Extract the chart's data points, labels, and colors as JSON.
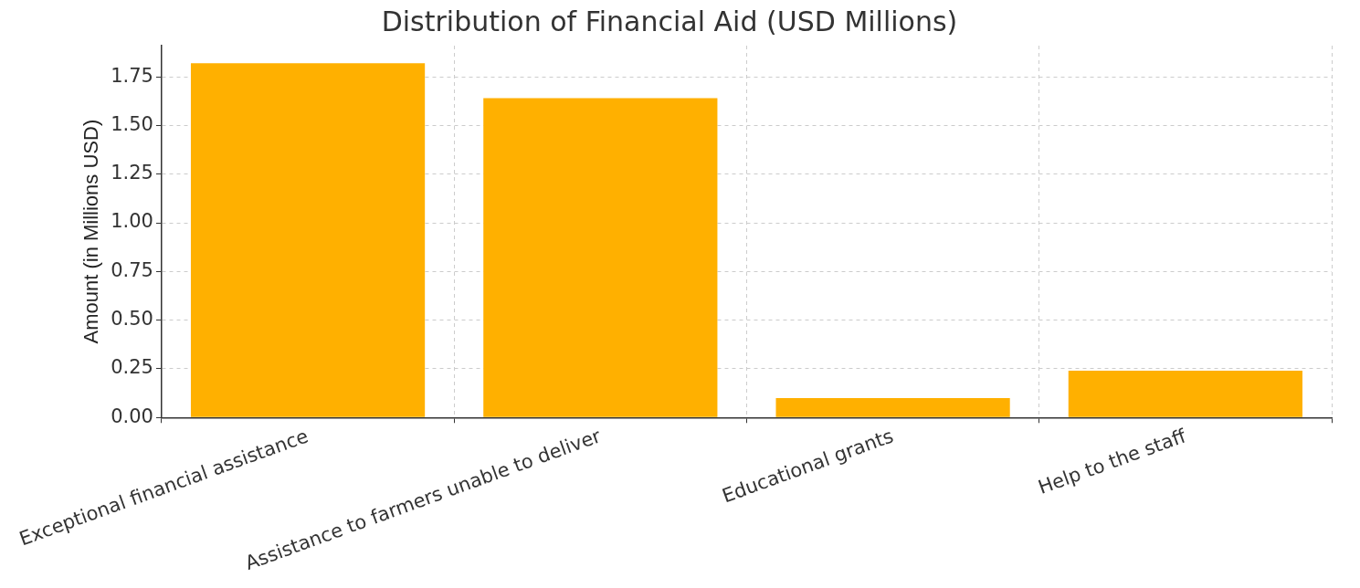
{
  "chart_data": {
    "type": "bar",
    "title": "Distribution of Financial Aid (USD Millions)",
    "ylabel": "Amount (in Millions USD)",
    "categories": [
      "Exceptional financial assistance",
      "Assistance to farmers unable to deliver",
      "Educational grants",
      "Help to the staff"
    ],
    "values": [
      1.82,
      1.64,
      0.1,
      0.24
    ],
    "color": "#ffb000",
    "ylim": [
      0,
      1.91
    ],
    "yticks": [
      {
        "value": 0,
        "label": "0.00"
      },
      {
        "value": 0.25,
        "label": "0.25"
      },
      {
        "value": 0.5,
        "label": "0.50"
      },
      {
        "value": 0.75,
        "label": "0.75"
      },
      {
        "value": 1,
        "label": "1.00"
      },
      {
        "value": 1.25,
        "label": "1.25"
      },
      {
        "value": 1.5,
        "label": "1.50"
      },
      {
        "value": 1.75,
        "label": "1.75"
      }
    ],
    "grid": true,
    "legend": false
  }
}
